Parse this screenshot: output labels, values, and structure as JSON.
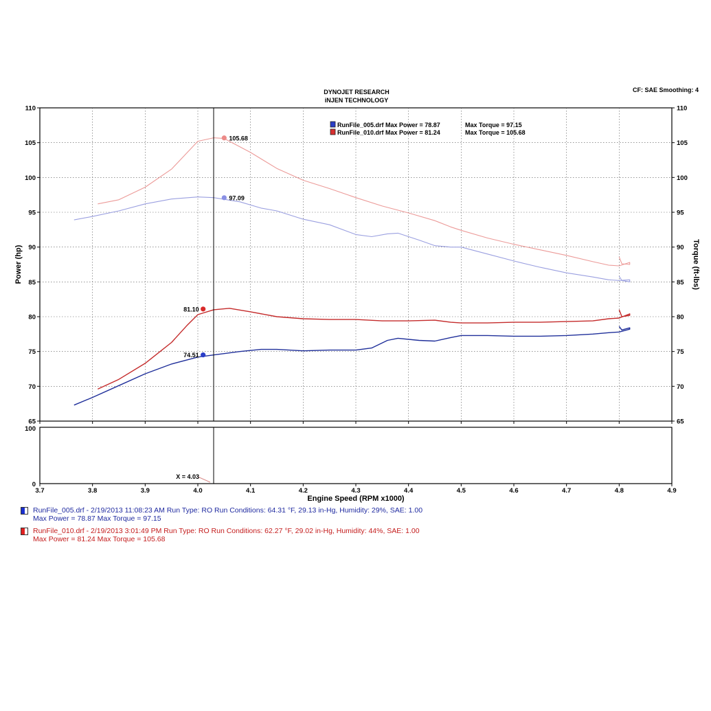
{
  "header": {
    "title_line1": "DYNOJET RESEARCH",
    "title_line2": "iNJEN TECHNOLOGY",
    "cf_label": "CF: SAE  Smoothing: 4"
  },
  "colors": {
    "run005_power": "#1f2f9a",
    "run005_torque": "#9a9fe0",
    "run010_power": "#c42a2a",
    "run010_torque": "#ec9a98",
    "run005_swatch": "#2a3ec8",
    "run010_swatch": "#d83030"
  },
  "legend": {
    "run005": {
      "label": "RunFile_005.drf Max Power = 78.87",
      "torque": "Max Torque = 97.15"
    },
    "run010": {
      "label": "RunFile_010.drf Max Power = 81.24",
      "torque": "Max Torque = 105.68"
    }
  },
  "cursor": {
    "x_value": 4.03,
    "readout": "X = 4.03",
    "labels": {
      "run010_torque": "105.68",
      "run005_torque": "97.09",
      "run010_power": "81.10",
      "run005_power": "74.51"
    }
  },
  "chart_data": {
    "type": "line",
    "xlabel": "Engine Speed (RPM x1000)",
    "ylabel_left": "Power (hp)",
    "ylabel_right": "Torque (ft-lbs)",
    "xlim": [
      3.7,
      4.9
    ],
    "ylim": [
      65,
      110
    ],
    "x_ticks": [
      "3.7",
      "3.8",
      "3.9",
      "4.0",
      "4.1",
      "4.2",
      "4.3",
      "4.4",
      "4.5",
      "4.6",
      "4.7",
      "4.8",
      "4.9"
    ],
    "y_ticks": [
      "65",
      "70",
      "75",
      "80",
      "85",
      "90",
      "95",
      "100",
      "105",
      "110"
    ],
    "grid": true,
    "lower_panel": {
      "ylim": [
        0,
        100
      ],
      "y_ticks": [
        "0",
        "100"
      ]
    },
    "series": [
      {
        "name": "RunFile_005.drf Max Power = 78.87",
        "kind": "power",
        "color_key": "run005_power",
        "points": [
          [
            3.765,
            67.3
          ],
          [
            3.8,
            68.4
          ],
          [
            3.85,
            70.1
          ],
          [
            3.9,
            71.8
          ],
          [
            3.95,
            73.2
          ],
          [
            4.0,
            74.2
          ],
          [
            4.03,
            74.5
          ],
          [
            4.08,
            75.0
          ],
          [
            4.12,
            75.3
          ],
          [
            4.15,
            75.3
          ],
          [
            4.2,
            75.1
          ],
          [
            4.25,
            75.2
          ],
          [
            4.3,
            75.2
          ],
          [
            4.33,
            75.5
          ],
          [
            4.36,
            76.6
          ],
          [
            4.38,
            76.9
          ],
          [
            4.42,
            76.6
          ],
          [
            4.45,
            76.5
          ],
          [
            4.48,
            77.0
          ],
          [
            4.5,
            77.3
          ],
          [
            4.55,
            77.3
          ],
          [
            4.6,
            77.2
          ],
          [
            4.65,
            77.2
          ],
          [
            4.7,
            77.3
          ],
          [
            4.75,
            77.5
          ],
          [
            4.78,
            77.7
          ],
          [
            4.8,
            77.8
          ],
          [
            4.82,
            78.2
          ],
          [
            4.82,
            78.4
          ],
          [
            4.805,
            78.1
          ],
          [
            4.8,
            78.6
          ]
        ]
      },
      {
        "name": "RunFile_005.drf Max Torque = 97.15",
        "kind": "torque",
        "color_key": "run005_torque",
        "points": [
          [
            3.765,
            93.9
          ],
          [
            3.8,
            94.4
          ],
          [
            3.85,
            95.2
          ],
          [
            3.9,
            96.2
          ],
          [
            3.95,
            96.9
          ],
          [
            4.0,
            97.2
          ],
          [
            4.03,
            97.1
          ],
          [
            4.08,
            96.5
          ],
          [
            4.12,
            95.6
          ],
          [
            4.15,
            95.2
          ],
          [
            4.2,
            94.0
          ],
          [
            4.25,
            93.2
          ],
          [
            4.3,
            91.8
          ],
          [
            4.33,
            91.5
          ],
          [
            4.36,
            91.9
          ],
          [
            4.38,
            92.0
          ],
          [
            4.42,
            91.0
          ],
          [
            4.45,
            90.2
          ],
          [
            4.48,
            90.0
          ],
          [
            4.5,
            90.0
          ],
          [
            4.55,
            89.0
          ],
          [
            4.6,
            88.0
          ],
          [
            4.65,
            87.1
          ],
          [
            4.7,
            86.3
          ],
          [
            4.75,
            85.7
          ],
          [
            4.78,
            85.3
          ],
          [
            4.8,
            85.2
          ],
          [
            4.82,
            85.3
          ],
          [
            4.82,
            85.0
          ],
          [
            4.805,
            85.2
          ],
          [
            4.8,
            85.8
          ]
        ]
      },
      {
        "name": "RunFile_010.drf Max Power = 81.24",
        "kind": "power",
        "color_key": "run010_power",
        "points": [
          [
            3.81,
            69.6
          ],
          [
            3.85,
            71.0
          ],
          [
            3.9,
            73.3
          ],
          [
            3.95,
            76.3
          ],
          [
            3.98,
            78.8
          ],
          [
            4.0,
            80.3
          ],
          [
            4.03,
            81.0
          ],
          [
            4.06,
            81.2
          ],
          [
            4.1,
            80.7
          ],
          [
            4.15,
            80.0
          ],
          [
            4.2,
            79.7
          ],
          [
            4.25,
            79.6
          ],
          [
            4.3,
            79.6
          ],
          [
            4.35,
            79.4
          ],
          [
            4.4,
            79.4
          ],
          [
            4.45,
            79.5
          ],
          [
            4.48,
            79.2
          ],
          [
            4.5,
            79.1
          ],
          [
            4.55,
            79.1
          ],
          [
            4.6,
            79.2
          ],
          [
            4.65,
            79.2
          ],
          [
            4.7,
            79.3
          ],
          [
            4.75,
            79.4
          ],
          [
            4.78,
            79.7
          ],
          [
            4.8,
            79.8
          ],
          [
            4.82,
            80.4
          ],
          [
            4.82,
            80.2
          ],
          [
            4.805,
            80.0
          ],
          [
            4.8,
            81.0
          ]
        ]
      },
      {
        "name": "RunFile_010.drf Max Torque = 105.68",
        "kind": "torque",
        "color_key": "run010_torque",
        "points": [
          [
            3.81,
            96.2
          ],
          [
            3.85,
            96.8
          ],
          [
            3.9,
            98.6
          ],
          [
            3.95,
            101.2
          ],
          [
            3.98,
            103.6
          ],
          [
            4.0,
            105.2
          ],
          [
            4.03,
            105.7
          ],
          [
            4.05,
            105.6
          ],
          [
            4.1,
            103.6
          ],
          [
            4.15,
            101.3
          ],
          [
            4.2,
            99.6
          ],
          [
            4.25,
            98.4
          ],
          [
            4.3,
            97.1
          ],
          [
            4.35,
            95.9
          ],
          [
            4.4,
            94.9
          ],
          [
            4.45,
            93.8
          ],
          [
            4.48,
            92.9
          ],
          [
            4.5,
            92.4
          ],
          [
            4.55,
            91.3
          ],
          [
            4.6,
            90.4
          ],
          [
            4.65,
            89.6
          ],
          [
            4.7,
            88.8
          ],
          [
            4.75,
            87.9
          ],
          [
            4.78,
            87.4
          ],
          [
            4.8,
            87.3
          ],
          [
            4.82,
            87.8
          ],
          [
            4.82,
            87.5
          ],
          [
            4.805,
            87.6
          ],
          [
            4.8,
            88.6
          ]
        ]
      }
    ]
  }
}
